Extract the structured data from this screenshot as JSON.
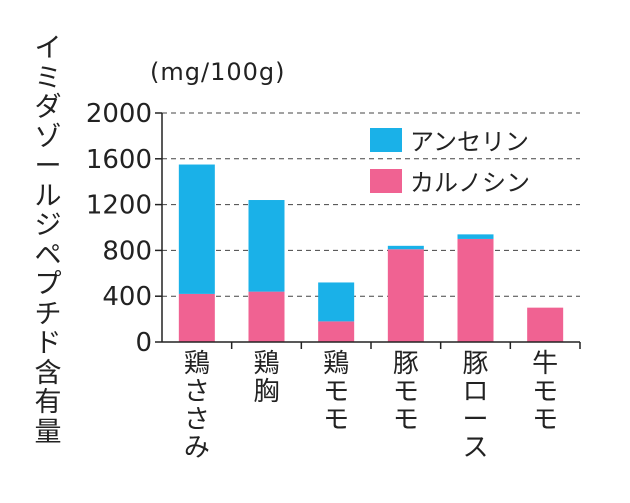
{
  "chart_data": {
    "type": "bar",
    "stacked": true,
    "title": "",
    "ylabel": "イミダゾールジペプチド含有量",
    "unit": "(mg/100g)",
    "ylim": [
      0,
      2000
    ],
    "yticks": [
      0,
      400,
      800,
      1200,
      1600,
      2000
    ],
    "categories": [
      "鶏ささみ",
      "鶏胸",
      "鶏モモ",
      "豚モモ",
      "豚ロース",
      "牛モモ"
    ],
    "series": [
      {
        "name": "カルノシン",
        "color": "#f06292",
        "values": [
          420,
          440,
          180,
          810,
          900,
          300
        ]
      },
      {
        "name": "アンセリン",
        "color": "#1ab1e8",
        "values": [
          1130,
          800,
          340,
          30,
          40,
          0
        ]
      }
    ],
    "legend": [
      {
        "name": "アンセリン",
        "color": "#1ab1e8"
      },
      {
        "name": "カルノシン",
        "color": "#f06292"
      }
    ],
    "legend_position": "top-right",
    "grid": "horizontal-dashed"
  }
}
